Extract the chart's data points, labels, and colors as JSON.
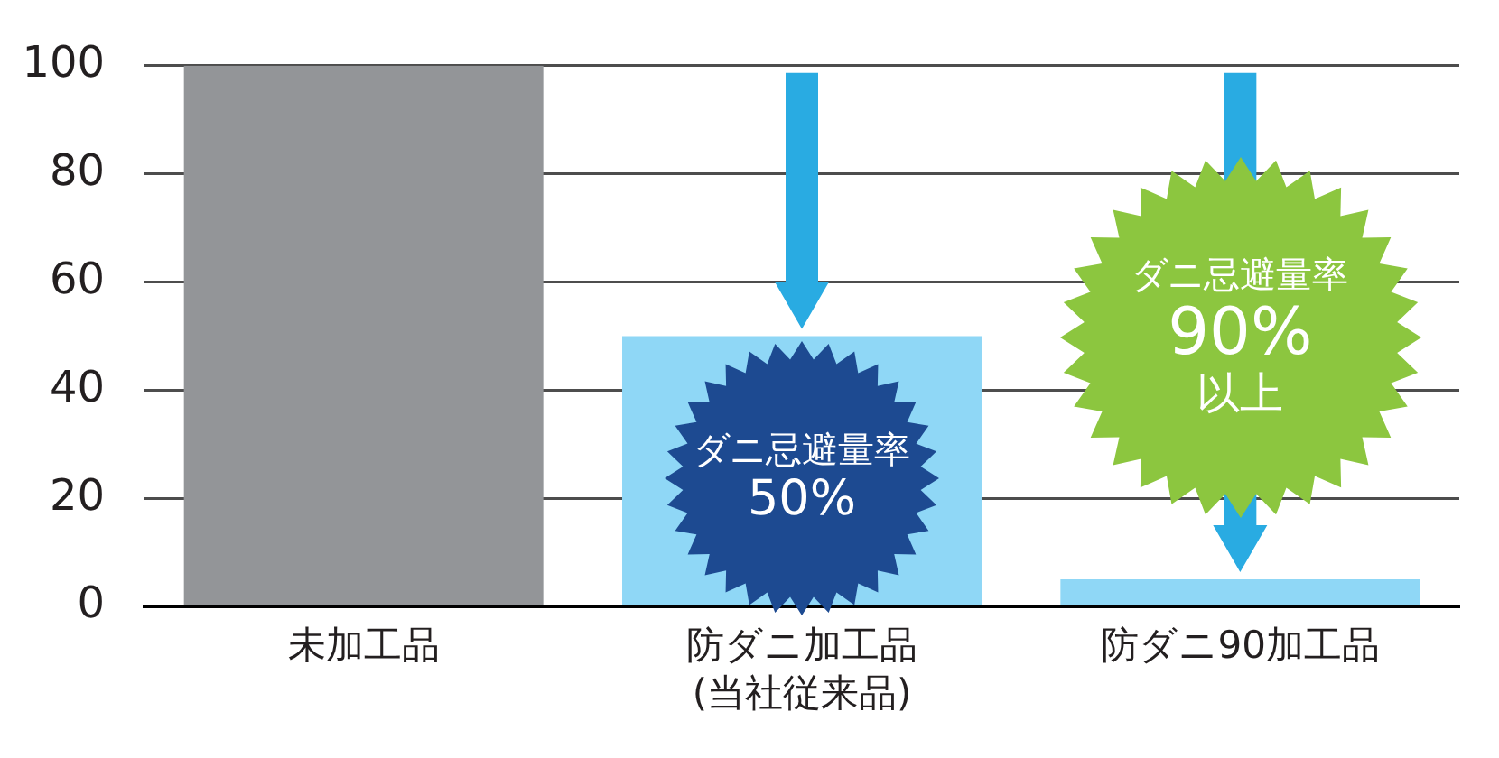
{
  "chart_data": {
    "type": "bar",
    "categories": [
      "未加工品",
      "防ダニ加工品\n(当社従来品)",
      "防ダニ90加工品"
    ],
    "values": [
      100,
      50,
      5
    ],
    "colors": [
      "#939598",
      "#8fd7f6",
      "#8fd7f6"
    ],
    "ylim": [
      0,
      100
    ],
    "yticks": [
      0,
      20,
      40,
      60,
      80,
      100
    ],
    "grid": "y",
    "annotations": [
      {
        "text": "ダニ忌避量率\n50%",
        "x": "防ダニ加工品\n(当社従来品)",
        "y": 50
      },
      {
        "text": "ダニ忌避量率\n90%\n以上",
        "x": "防ダニ90加工品",
        "y": 5
      }
    ]
  }
}
